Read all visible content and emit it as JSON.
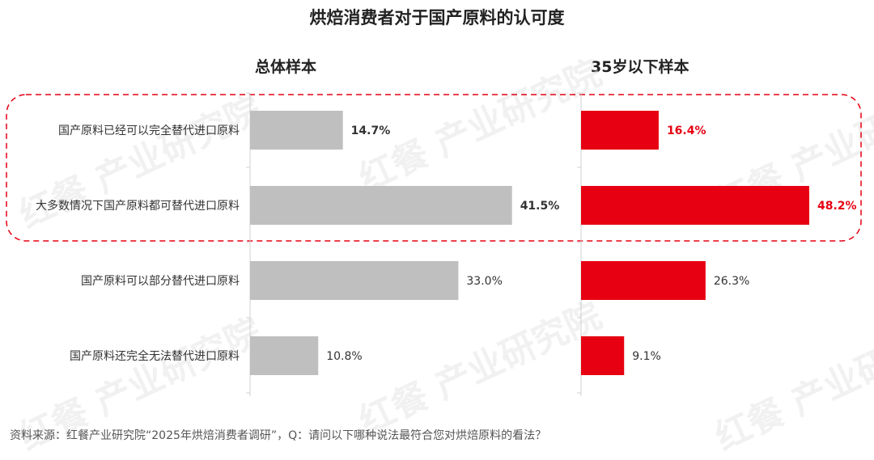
{
  "title": "烘焙消费者对于国产原料的认可度",
  "source": "资料来源：红餐产业研究院“2025年烘焙消费者调研”，Q：请问以下哪种说法最符合您对烘焙原料的看法？",
  "watermark": "红餐 产业研究院",
  "colors": {
    "gray": "#bfbfbf",
    "red": "#e60012",
    "highlight_border": "#e60012"
  },
  "chart_data": {
    "type": "bar",
    "orientation": "horizontal",
    "categories": [
      "国产原料已经可以完全替代进口原料",
      "大多数情况下国产原料都可替代进口原料",
      "国产原料可以部分替代进口原料",
      "国产原料还完全无法替代进口原料"
    ],
    "panels": [
      {
        "title": "总体样本",
        "values": [
          14.7,
          41.5,
          33.0,
          10.8
        ],
        "labels": [
          "14.7%",
          "41.5%",
          "33.0%",
          "10.8%"
        ],
        "color": "#bfbfbf"
      },
      {
        "title": "35岁以下样本",
        "values": [
          16.4,
          48.2,
          26.3,
          9.1
        ],
        "labels": [
          "16.4%",
          "48.2%",
          "26.3%",
          "9.1%"
        ],
        "color": "#e60012"
      }
    ],
    "highlighted_categories": [
      0,
      1
    ],
    "grid": false,
    "legend": "none"
  }
}
